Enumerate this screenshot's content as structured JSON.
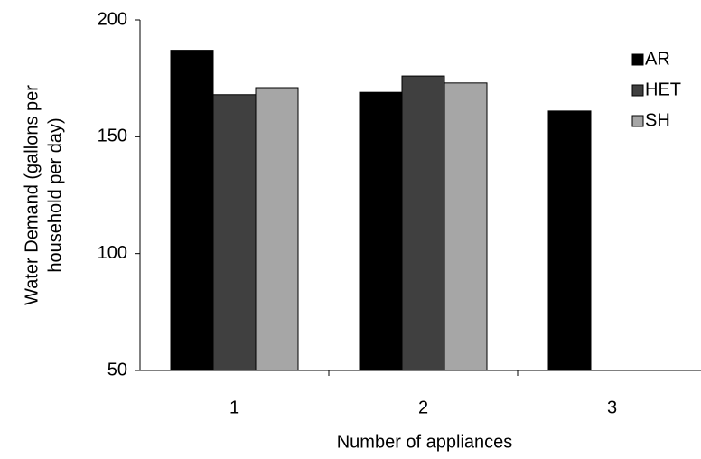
{
  "chart_data": {
    "type": "bar",
    "xlabel": "Number of appliances",
    "ylabel": [
      "Water Demand (gallons per",
      "household per day)"
    ],
    "categories": [
      "1",
      "2",
      "3"
    ],
    "series": [
      {
        "name": "AR",
        "color": "#000000",
        "values": [
          187,
          169,
          161
        ]
      },
      {
        "name": "HET",
        "color": "#404040",
        "values": [
          168,
          176,
          null
        ]
      },
      {
        "name": "SH",
        "color": "#a6a6a6",
        "values": [
          171,
          173,
          null
        ]
      }
    ],
    "ylim": [
      50,
      200
    ],
    "yticks": [
      50,
      100,
      150,
      200
    ],
    "legend": "top-right",
    "grid": false
  }
}
